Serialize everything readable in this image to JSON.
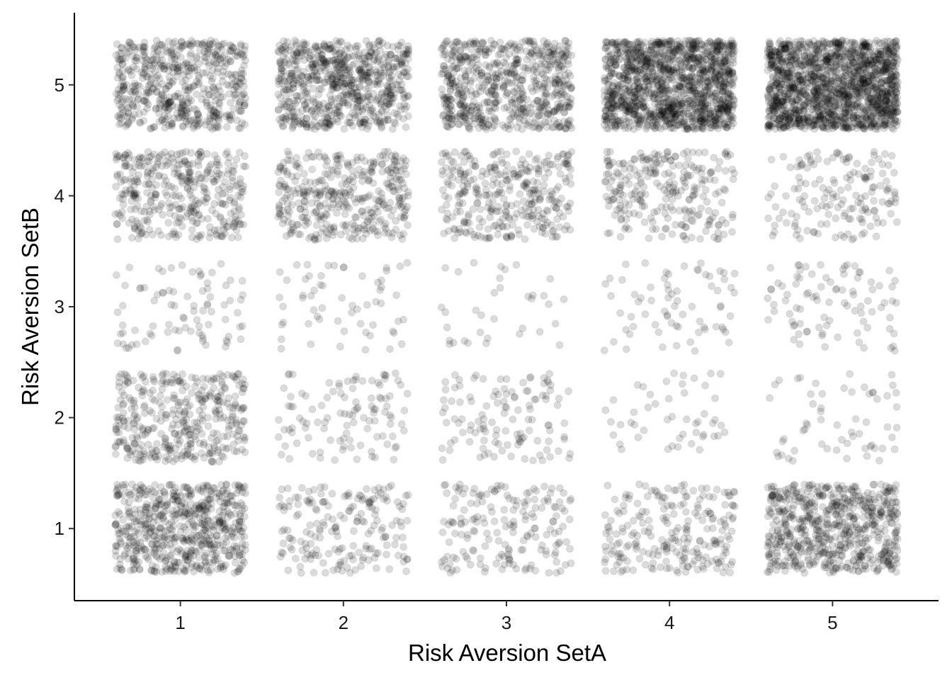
{
  "chart_data": {
    "type": "scatter",
    "title": "",
    "xlabel": "Risk Aversion SetA",
    "ylabel": "Risk Aversion SetB",
    "x_ticks": [
      "1",
      "2",
      "3",
      "4",
      "5"
    ],
    "y_ticks": [
      "1",
      "2",
      "3",
      "4",
      "5"
    ],
    "xlim": [
      0.35,
      5.65
    ],
    "ylim": [
      0.35,
      5.65
    ],
    "jitter": 0.4,
    "grid": false,
    "legend": "none",
    "point_color": "#000000",
    "point_opacity": 0.14,
    "cells": [
      {
        "x": 1,
        "y": 5,
        "count": 560
      },
      {
        "x": 2,
        "y": 5,
        "count": 700
      },
      {
        "x": 3,
        "y": 5,
        "count": 650
      },
      {
        "x": 4,
        "y": 5,
        "count": 1300
      },
      {
        "x": 5,
        "y": 5,
        "count": 1500
      },
      {
        "x": 1,
        "y": 4,
        "count": 380
      },
      {
        "x": 2,
        "y": 4,
        "count": 380
      },
      {
        "x": 3,
        "y": 4,
        "count": 330
      },
      {
        "x": 4,
        "y": 4,
        "count": 260
      },
      {
        "x": 5,
        "y": 4,
        "count": 160
      },
      {
        "x": 1,
        "y": 3,
        "count": 85
      },
      {
        "x": 2,
        "y": 3,
        "count": 60
      },
      {
        "x": 3,
        "y": 3,
        "count": 35
      },
      {
        "x": 4,
        "y": 3,
        "count": 70
      },
      {
        "x": 5,
        "y": 3,
        "count": 90
      },
      {
        "x": 1,
        "y": 2,
        "count": 380
      },
      {
        "x": 2,
        "y": 2,
        "count": 110
      },
      {
        "x": 3,
        "y": 2,
        "count": 120
      },
      {
        "x": 4,
        "y": 2,
        "count": 50
      },
      {
        "x": 5,
        "y": 2,
        "count": 60
      },
      {
        "x": 1,
        "y": 1,
        "count": 620
      },
      {
        "x": 2,
        "y": 1,
        "count": 190
      },
      {
        "x": 3,
        "y": 1,
        "count": 180
      },
      {
        "x": 4,
        "y": 1,
        "count": 230
      },
      {
        "x": 5,
        "y": 1,
        "count": 650
      }
    ]
  }
}
